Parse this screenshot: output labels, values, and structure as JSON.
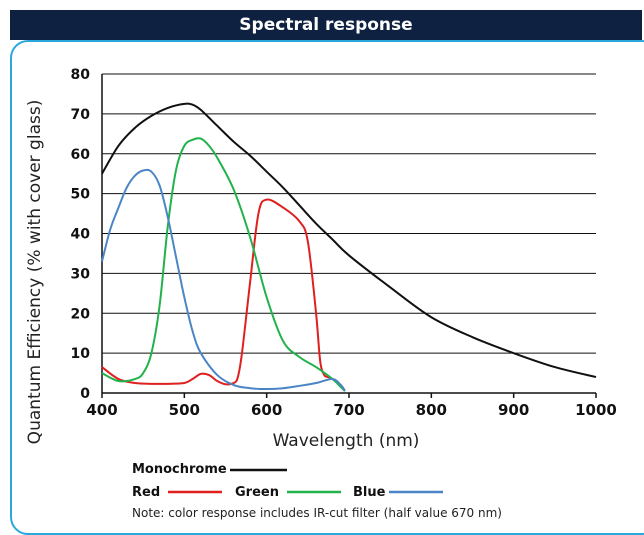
{
  "header": {
    "title": "Spectral response"
  },
  "colors": {
    "header_bg": "#0f2140",
    "border": "#2aa8dc"
  },
  "legend": {
    "monochrome": "Monochrome",
    "red": "Red",
    "green": "Green",
    "blue": "Blue",
    "note": "Note: color response includes IR-cut filter (half value 670 nm)"
  },
  "chart_data": {
    "type": "line",
    "title": "",
    "xlabel": "Wavelength (nm)",
    "ylabel": "Quantum Efficiency (% with cover glass)",
    "xlim": [
      400,
      1000
    ],
    "ylim": [
      0,
      80
    ],
    "xticks": [
      400,
      500,
      600,
      700,
      800,
      900,
      1000
    ],
    "yticks": [
      0,
      10,
      20,
      30,
      40,
      50,
      60,
      70,
      80
    ],
    "grid": "horizontal",
    "legend_position": "bottom",
    "series": [
      {
        "name": "Monochrome",
        "color": "#111111",
        "x": [
          400,
          420,
          440,
          460,
          480,
          500,
          510,
          520,
          540,
          560,
          580,
          600,
          620,
          640,
          660,
          680,
          700,
          750,
          800,
          850,
          900,
          950,
          1000
        ],
        "y": [
          55,
          62,
          66.5,
          69.5,
          71.5,
          72.5,
          72.3,
          71,
          67,
          63,
          59.5,
          55.5,
          51.5,
          47,
          42.5,
          38.5,
          34.5,
          26.5,
          19,
          14,
          10,
          6.5,
          4
        ]
      },
      {
        "name": "Red",
        "color": "#e01f1f",
        "x": [
          400,
          420,
          440,
          460,
          480,
          500,
          510,
          520,
          530,
          540,
          550,
          560,
          565,
          570,
          580,
          590,
          600,
          620,
          640,
          650,
          660,
          665,
          670,
          675,
          680,
          690,
          695
        ],
        "y": [
          6.5,
          3.5,
          2.5,
          2.3,
          2.3,
          2.5,
          3.5,
          4.8,
          4.5,
          3,
          2.2,
          2.5,
          4,
          10,
          28,
          45,
          48.5,
          46.5,
          43,
          38,
          20,
          8,
          4.5,
          4,
          3.5,
          2,
          0.5
        ]
      },
      {
        "name": "Green",
        "color": "#21b24b",
        "x": [
          400,
          420,
          440,
          450,
          460,
          470,
          480,
          490,
          500,
          510,
          520,
          530,
          540,
          560,
          580,
          600,
          620,
          640,
          660,
          680,
          690,
          695
        ],
        "y": [
          5,
          3,
          3.5,
          5,
          10,
          22,
          42,
          56,
          62,
          63.5,
          63.8,
          62,
          59,
          51,
          39,
          24,
          13,
          9,
          6.5,
          3.5,
          1.5,
          0.5
        ]
      },
      {
        "name": "Blue",
        "color": "#4a86c5",
        "x": [
          400,
          410,
          420,
          430,
          440,
          450,
          460,
          470,
          480,
          490,
          500,
          510,
          520,
          540,
          560,
          580,
          600,
          620,
          640,
          660,
          680,
          690,
          695
        ],
        "y": [
          33,
          41,
          46.5,
          51.5,
          54.5,
          55.8,
          55.5,
          52,
          44,
          34,
          24,
          15.5,
          10,
          4.5,
          2,
          1.2,
          1,
          1.2,
          1.8,
          2.5,
          3.5,
          2,
          0.5
        ]
      }
    ]
  }
}
